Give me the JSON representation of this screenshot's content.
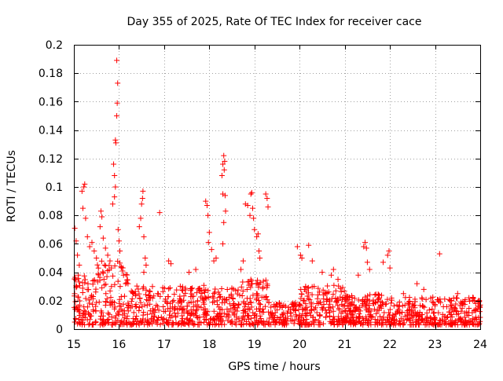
{
  "chart_data": {
    "type": "scatter",
    "title": "Day 355 of 2025, Rate Of TEC Index for receiver cace",
    "xlabel": "GPS time / hours",
    "ylabel": "ROTI / TECUs",
    "xlim": [
      15,
      24
    ],
    "ylim": [
      0,
      0.2
    ],
    "xticks": [
      15,
      16,
      17,
      18,
      19,
      20,
      21,
      22,
      23,
      24
    ],
    "xtick_labels": [
      "15",
      "16",
      "17",
      "18",
      "19",
      "20",
      "21",
      "22",
      "23",
      "24"
    ],
    "yticks": [
      0,
      0.02,
      0.04,
      0.06,
      0.08,
      0.1,
      0.12,
      0.14,
      0.16,
      0.18,
      0.2
    ],
    "ytick_labels": [
      "0",
      "0.02",
      "0.04",
      "0.06",
      "0.08",
      "0.1",
      "0.12",
      "0.14",
      "0.16",
      "0.18",
      "0.2"
    ],
    "grid": true,
    "marker": "+",
    "color": "#ff0000",
    "series": [
      {
        "name": "ROTI",
        "points": [
          [
            15.02,
            0.071
          ],
          [
            15.05,
            0.062
          ],
          [
            15.08,
            0.052
          ],
          [
            15.12,
            0.045
          ],
          [
            15.1,
            0.038
          ],
          [
            15.18,
            0.097
          ],
          [
            15.22,
            0.1
          ],
          [
            15.24,
            0.102
          ],
          [
            15.2,
            0.085
          ],
          [
            15.26,
            0.078
          ],
          [
            15.3,
            0.065
          ],
          [
            15.35,
            0.058
          ],
          [
            15.4,
            0.061
          ],
          [
            15.45,
            0.055
          ],
          [
            15.5,
            0.05
          ],
          [
            15.6,
            0.083
          ],
          [
            15.62,
            0.079
          ],
          [
            15.58,
            0.072
          ],
          [
            15.65,
            0.064
          ],
          [
            15.7,
            0.057
          ],
          [
            15.75,
            0.052
          ],
          [
            15.8,
            0.048
          ],
          [
            15.83,
            0.043
          ],
          [
            15.88,
            0.116
          ],
          [
            15.9,
            0.108
          ],
          [
            15.92,
            0.1
          ],
          [
            15.9,
            0.093
          ],
          [
            15.86,
            0.088
          ],
          [
            15.93,
            0.131
          ],
          [
            15.95,
            0.15
          ],
          [
            15.96,
            0.159
          ],
          [
            15.97,
            0.173
          ],
          [
            15.95,
            0.189
          ],
          [
            15.92,
            0.133
          ],
          [
            15.98,
            0.07
          ],
          [
            16.0,
            0.062
          ],
          [
            16.02,
            0.055
          ],
          [
            16.1,
            0.038
          ],
          [
            16.2,
            0.032
          ],
          [
            16.45,
            0.072
          ],
          [
            16.48,
            0.078
          ],
          [
            16.5,
            0.088
          ],
          [
            16.52,
            0.092
          ],
          [
            16.53,
            0.097
          ],
          [
            16.55,
            0.065
          ],
          [
            16.58,
            0.05
          ],
          [
            16.6,
            0.045
          ],
          [
            16.55,
            0.04
          ],
          [
            16.9,
            0.082
          ],
          [
            17.1,
            0.048
          ],
          [
            17.15,
            0.046
          ],
          [
            17.55,
            0.04
          ],
          [
            17.7,
            0.042
          ],
          [
            17.92,
            0.09
          ],
          [
            17.95,
            0.087
          ],
          [
            17.97,
            0.08
          ],
          [
            18.0,
            0.068
          ],
          [
            17.98,
            0.061
          ],
          [
            18.05,
            0.056
          ],
          [
            18.1,
            0.048
          ],
          [
            18.15,
            0.05
          ],
          [
            18.28,
            0.108
          ],
          [
            18.3,
            0.116
          ],
          [
            18.32,
            0.122
          ],
          [
            18.34,
            0.118
          ],
          [
            18.33,
            0.112
          ],
          [
            18.3,
            0.095
          ],
          [
            18.35,
            0.094
          ],
          [
            18.36,
            0.083
          ],
          [
            18.32,
            0.075
          ],
          [
            18.3,
            0.06
          ],
          [
            18.8,
            0.088
          ],
          [
            18.85,
            0.087
          ],
          [
            18.9,
            0.08
          ],
          [
            18.92,
            0.095
          ],
          [
            18.94,
            0.096
          ],
          [
            18.96,
            0.085
          ],
          [
            18.98,
            0.078
          ],
          [
            19.0,
            0.07
          ],
          [
            19.05,
            0.065
          ],
          [
            19.08,
            0.067
          ],
          [
            19.1,
            0.055
          ],
          [
            19.12,
            0.05
          ],
          [
            18.75,
            0.048
          ],
          [
            18.7,
            0.042
          ],
          [
            19.25,
            0.095
          ],
          [
            19.28,
            0.092
          ],
          [
            19.3,
            0.086
          ],
          [
            19.95,
            0.058
          ],
          [
            20.02,
            0.052
          ],
          [
            20.05,
            0.05
          ],
          [
            20.2,
            0.059
          ],
          [
            20.28,
            0.048
          ],
          [
            20.5,
            0.04
          ],
          [
            20.7,
            0.038
          ],
          [
            20.75,
            0.042
          ],
          [
            20.85,
            0.035
          ],
          [
            21.3,
            0.038
          ],
          [
            21.42,
            0.058
          ],
          [
            21.45,
            0.061
          ],
          [
            21.48,
            0.057
          ],
          [
            21.5,
            0.047
          ],
          [
            21.55,
            0.042
          ],
          [
            21.85,
            0.047
          ],
          [
            21.95,
            0.052
          ],
          [
            21.98,
            0.055
          ],
          [
            22.0,
            0.043
          ],
          [
            22.3,
            0.025
          ],
          [
            22.6,
            0.032
          ],
          [
            22.75,
            0.028
          ],
          [
            23.1,
            0.053
          ],
          [
            23.5,
            0.025
          ],
          [
            23.75,
            0.022
          ],
          [
            23.9,
            0.018
          ]
        ]
      }
    ]
  }
}
